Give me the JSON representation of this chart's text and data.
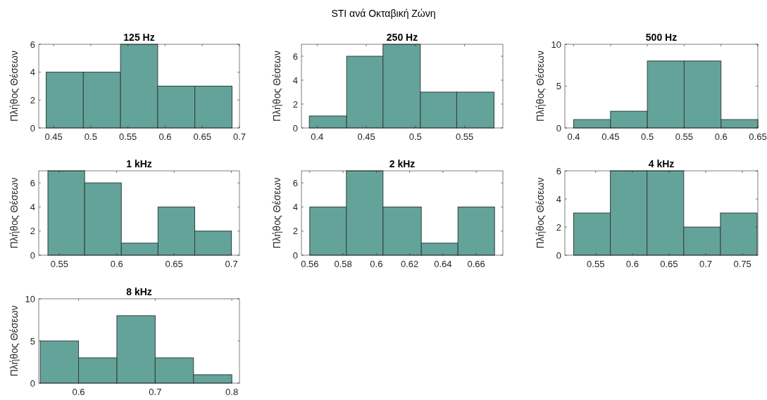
{
  "chart_data": [
    {
      "type": "histogram",
      "title": "125 Hz",
      "ylabel": "Πλήθος Θέσεων",
      "annotations": [
        "STI ανά Οκταβική Ζώνη"
      ],
      "bins": [
        0.44,
        0.49,
        0.54,
        0.59,
        0.64,
        0.69
      ],
      "values": [
        4,
        4,
        6,
        3,
        3
      ],
      "color": "#64a39a",
      "xlim": [
        0.43,
        0.7
      ],
      "xticks": [
        0.45,
        0.5,
        0.55,
        0.6,
        0.65,
        0.7
      ],
      "ylim": [
        0,
        6
      ],
      "yticks": [
        0,
        2,
        4,
        6
      ]
    },
    {
      "type": "histogram",
      "title": "250 Hz",
      "ylabel": "Πλήθος Θέσεων",
      "bins": [
        0.392,
        0.43,
        0.467,
        0.505,
        0.542,
        0.58
      ],
      "values": [
        1,
        6,
        7,
        3,
        3
      ],
      "color": "#64a39a",
      "xlim": [
        0.384,
        0.589
      ],
      "xticks": [
        0.4,
        0.45,
        0.5,
        0.55
      ],
      "ylim": [
        0,
        7
      ],
      "yticks": [
        0,
        2,
        4,
        6
      ]
    },
    {
      "type": "histogram",
      "title": "500 Hz",
      "ylabel": "Πλήθος Θέσεων",
      "bins": [
        0.4,
        0.45,
        0.5,
        0.55,
        0.6,
        0.65
      ],
      "values": [
        1,
        2,
        8,
        8,
        1
      ],
      "color": "#64a39a",
      "xlim": [
        0.388,
        0.65
      ],
      "xticks": [
        0.4,
        0.45,
        0.5,
        0.55,
        0.6,
        0.65
      ],
      "ylim": [
        0,
        10
      ],
      "yticks": [
        0,
        5,
        10
      ]
    },
    {
      "type": "histogram",
      "title": "1 kHz",
      "ylabel": "Πλήθος Θέσεων",
      "bins": [
        0.54,
        0.572,
        0.604,
        0.636,
        0.668,
        0.7
      ],
      "values": [
        7,
        6,
        1,
        4,
        2
      ],
      "color": "#64a39a",
      "xlim": [
        0.532,
        0.707
      ],
      "xticks": [
        0.55,
        0.6,
        0.65,
        0.7
      ],
      "ylim": [
        0,
        7
      ],
      "yticks": [
        0,
        2,
        4,
        6
      ]
    },
    {
      "type": "histogram",
      "title": "2 kHz",
      "ylabel": "Πλήθος Θέσεων",
      "bins": [
        0.56,
        0.582,
        0.604,
        0.627,
        0.649,
        0.671
      ],
      "values": [
        4,
        7,
        4,
        1,
        4
      ],
      "color": "#64a39a",
      "xlim": [
        0.555,
        0.676
      ],
      "xticks": [
        0.56,
        0.58,
        0.6,
        0.62,
        0.64,
        0.66
      ],
      "ylim": [
        0,
        7
      ],
      "yticks": [
        0,
        2,
        4,
        6
      ]
    },
    {
      "type": "histogram",
      "title": "4 kHz",
      "ylabel": "Πλήθος Θέσεων",
      "bins": [
        0.52,
        0.57,
        0.62,
        0.67,
        0.72,
        0.77
      ],
      "values": [
        3,
        6,
        6,
        2,
        3
      ],
      "color": "#64a39a",
      "xlim": [
        0.508,
        0.771
      ],
      "xticks": [
        0.55,
        0.6,
        0.65,
        0.7,
        0.75
      ],
      "ylim": [
        0,
        6
      ],
      "yticks": [
        0,
        2,
        4,
        6
      ]
    },
    {
      "type": "histogram",
      "title": "8 kHz",
      "ylabel": "Πλήθος Θέσεων",
      "bins": [
        0.55,
        0.6,
        0.65,
        0.7,
        0.75,
        0.8
      ],
      "values": [
        5,
        3,
        8,
        3,
        1
      ],
      "color": "#64a39a",
      "xlim": [
        0.548,
        0.81
      ],
      "xticks": [
        0.6,
        0.7,
        0.8
      ],
      "ylim": [
        0,
        10
      ],
      "yticks": [
        0,
        5,
        10
      ]
    }
  ]
}
